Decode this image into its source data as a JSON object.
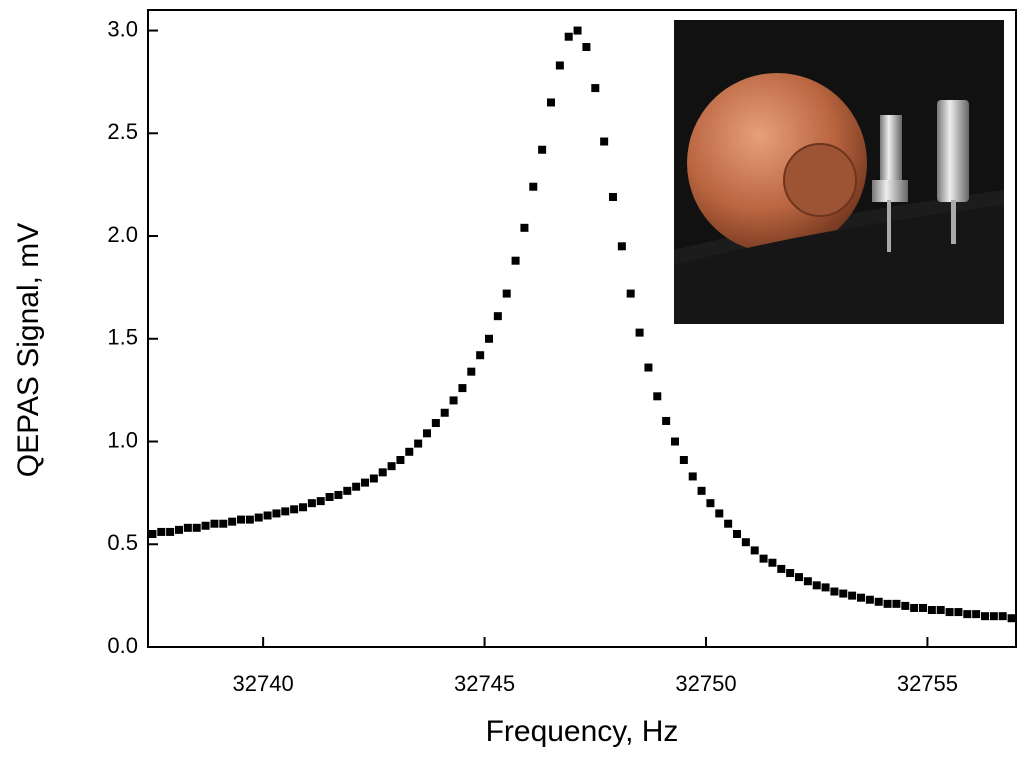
{
  "chart_data": {
    "type": "scatter",
    "x_label": "Frequency, Hz",
    "y_label": "QEPAS Signal, mV",
    "color": "#000000",
    "xlim": [
      32737.4,
      32757.0
    ],
    "xticks": [
      32740,
      32745,
      32750,
      32755
    ],
    "ylim": [
      0,
      3.1
    ],
    "yticks": [
      {
        "value": 0,
        "label": "0.0"
      },
      0.5,
      {
        "value": 1,
        "label": "1.0"
      },
      1.5,
      {
        "value": 2,
        "label": "2.0"
      },
      2.5,
      {
        "value": 3,
        "label": "3.0"
      }
    ],
    "x": [
      32737.5,
      32737.7,
      32737.9,
      32738.1,
      32738.3,
      32738.5,
      32738.7,
      32738.9,
      32739.1,
      32739.3,
      32739.5,
      32739.7,
      32739.9,
      32740.1,
      32740.3,
      32740.5,
      32740.7,
      32740.9,
      32741.1,
      32741.3,
      32741.5,
      32741.7,
      32741.9,
      32742.1,
      32742.3,
      32742.5,
      32742.7,
      32742.9,
      32743.1,
      32743.3,
      32743.5,
      32743.7,
      32743.9,
      32744.1,
      32744.3,
      32744.5,
      32744.7,
      32744.9,
      32745.1,
      32745.3,
      32745.5,
      32745.7,
      32745.9,
      32746.1,
      32746.3,
      32746.5,
      32746.7,
      32746.9,
      32747.1,
      32747.3,
      32747.5,
      32747.7,
      32747.9,
      32748.1,
      32748.3,
      32748.5,
      32748.7,
      32748.9,
      32749.1,
      32749.3,
      32749.5,
      32749.7,
      32749.9,
      32750.1,
      32750.3,
      32750.5,
      32750.7,
      32750.9,
      32751.1,
      32751.3,
      32751.5,
      32751.7,
      32751.9,
      32752.1,
      32752.3,
      32752.5,
      32752.7,
      32752.9,
      32753.1,
      32753.3,
      32753.5,
      32753.7,
      32753.9,
      32754.1,
      32754.3,
      32754.5,
      32754.7,
      32754.9,
      32755.1,
      32755.3,
      32755.5,
      32755.7,
      32755.9,
      32756.1,
      32756.3,
      32756.5,
      32756.7,
      32756.9
    ],
    "values": [
      0.55,
      0.56,
      0.56,
      0.57,
      0.58,
      0.58,
      0.59,
      0.6,
      0.6,
      0.61,
      0.62,
      0.62,
      0.63,
      0.64,
      0.65,
      0.66,
      0.67,
      0.68,
      0.7,
      0.71,
      0.73,
      0.74,
      0.76,
      0.78,
      0.8,
      0.82,
      0.85,
      0.88,
      0.91,
      0.95,
      0.99,
      1.04,
      1.09,
      1.14,
      1.2,
      1.26,
      1.34,
      1.42,
      1.5,
      1.61,
      1.72,
      1.88,
      2.04,
      2.24,
      2.42,
      2.65,
      2.83,
      2.97,
      3.0,
      2.92,
      2.72,
      2.46,
      2.19,
      1.95,
      1.72,
      1.53,
      1.36,
      1.22,
      1.1,
      1.0,
      0.91,
      0.83,
      0.76,
      0.7,
      0.65,
      0.6,
      0.55,
      0.51,
      0.47,
      0.43,
      0.41,
      0.38,
      0.36,
      0.34,
      0.32,
      0.3,
      0.29,
      0.27,
      0.26,
      0.25,
      0.24,
      0.23,
      0.22,
      0.21,
      0.21,
      0.2,
      0.19,
      0.19,
      0.18,
      0.18,
      0.17,
      0.17,
      0.16,
      0.16,
      0.15,
      0.15,
      0.15,
      0.14
    ]
  }
}
